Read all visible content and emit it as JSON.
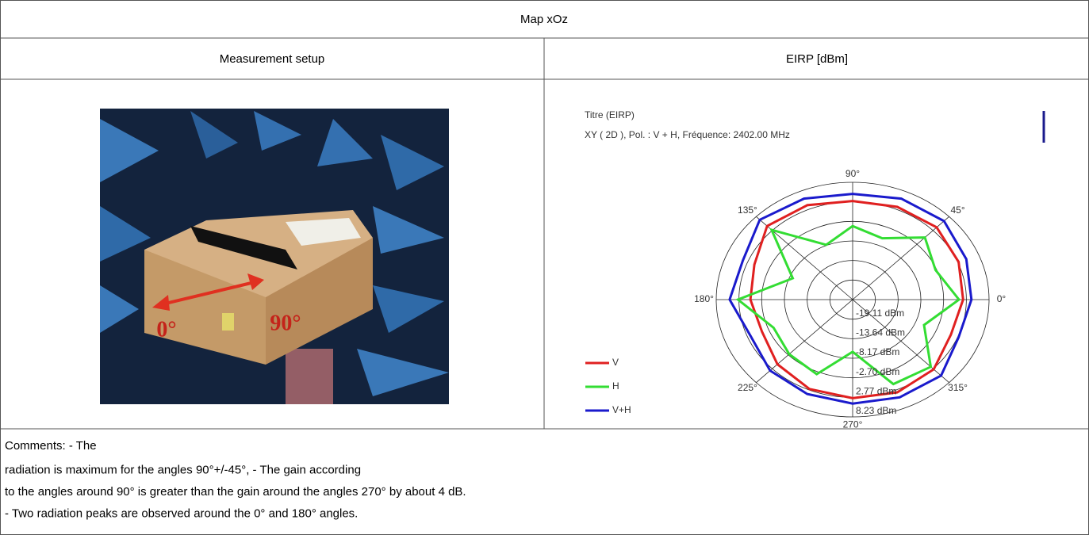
{
  "table": {
    "title": "Map xOz",
    "headers": [
      "Measurement setup",
      "EIRP [dBm]"
    ]
  },
  "photo": {
    "labels": [
      "0°",
      "90°"
    ]
  },
  "chart_data": {
    "type": "polar",
    "title": "Titre (EIRP)",
    "subtitle": "XY ( 2D ), Pol. : V + H, Fréquence: 2402.00 MHz",
    "theta": [
      0,
      22.5,
      45,
      67.5,
      90,
      112.5,
      135,
      157.5,
      180,
      202.5,
      225,
      247.5,
      270,
      292.5,
      315,
      337.5
    ],
    "series": [
      {
        "name": "V",
        "color": "#e02020",
        "values": [
          2,
          3,
          4,
          3.5,
          3,
          4,
          4.5,
          1,
          0,
          -1,
          1,
          2.5,
          3,
          3.5,
          3,
          1
        ]
      },
      {
        "name": "H",
        "color": "#33dd33",
        "values": [
          1,
          -3,
          0,
          -6,
          -4,
          -8,
          3,
          -9,
          3,
          -4,
          -3,
          -2,
          -10,
          1,
          2,
          -6
        ]
      },
      {
        "name": "V+H",
        "color": "#1a1acc",
        "values": [
          4,
          5,
          6.5,
          6,
          5,
          6,
          7,
          4,
          5,
          2,
          3.5,
          4,
          4.5,
          5,
          5.5,
          3
        ]
      }
    ],
    "rlim": [
      -24.58,
      8.23
    ],
    "rticks": [
      {
        "value": -19.11,
        "label": "-19.11 dBm"
      },
      {
        "value": -13.64,
        "label": "-13.64 dBm"
      },
      {
        "value": -8.17,
        "label": "-8.17 dBm"
      },
      {
        "value": -2.7,
        "label": "-2.70 dBm"
      },
      {
        "value": 2.77,
        "label": "2.77 dBm"
      },
      {
        "value": 8.23,
        "label": "8.23 dBm"
      }
    ],
    "angle_ticks": [
      {
        "value": 0,
        "label": "0°"
      },
      {
        "value": 45,
        "label": "45°"
      },
      {
        "value": 90,
        "label": "90°"
      },
      {
        "value": 135,
        "label": "135°"
      },
      {
        "value": 180,
        "label": "180°"
      },
      {
        "value": 225,
        "label": "225°"
      },
      {
        "value": 270,
        "label": "270°"
      },
      {
        "value": 315,
        "label": "315°"
      }
    ],
    "legend": "bottom-left"
  },
  "comments": [
    "Comments: - The",
    "radiation is maximum for the angles 90°+/-45°, - The gain according",
    "to the angles around 90° is greater than the gain around the angles 270° by about 4 dB.",
    "- Two radiation peaks are observed around the 0° and 180° angles."
  ]
}
